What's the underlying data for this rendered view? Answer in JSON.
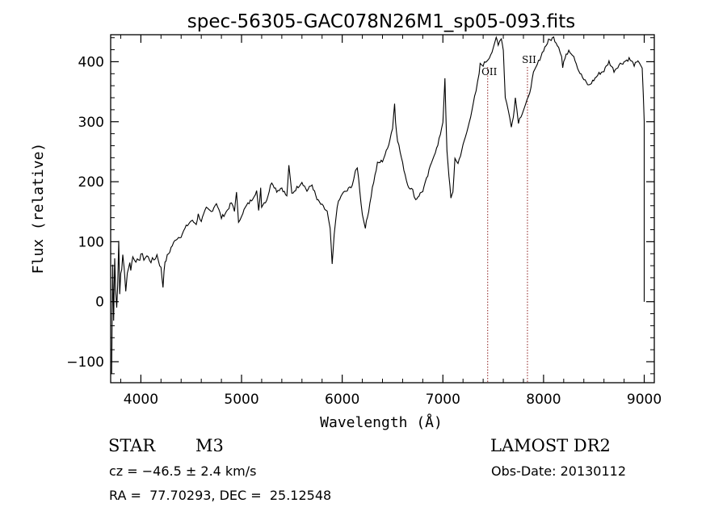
{
  "info": {
    "class_label": "STAR",
    "subclass": "M3",
    "redshift": "cz = −46.5 ± 2.4 km/s",
    "coords": "RA =  77.70293, DEC =  25.12548",
    "survey": "LAMOST DR2",
    "obs_date": "Obs-Date: 20130112"
  },
  "chart_data": {
    "type": "line",
    "title": "spec-56305-GAC078N26M1_sp05-093.fits",
    "xlabel": "Wavelength (Å)",
    "ylabel": "Flux (relative)",
    "xlim": [
      3700,
      9100
    ],
    "ylim": [
      -135,
      445
    ],
    "xticks": [
      4000,
      5000,
      6000,
      7000,
      8000,
      9000
    ],
    "yticks": [
      -100,
      0,
      100,
      200,
      300,
      400
    ],
    "ytick_labels": [
      "−100",
      "0",
      "100",
      "200",
      "300",
      "400"
    ],
    "grid": false,
    "line_color": "#000000",
    "annotation_color": "#8b1a1a",
    "annotations": [
      {
        "label": "OII",
        "x": 7445,
        "y": 378
      },
      {
        "label": "SII",
        "x": 7840,
        "y": 398
      }
    ],
    "series": [
      {
        "x": [
          3710,
          3720,
          3730,
          3740,
          3750,
          3760,
          3770,
          3780,
          3790,
          3800,
          3820,
          3850,
          3880,
          3900,
          3920,
          3950,
          3980,
          4000,
          4030,
          4060,
          4100,
          4130,
          4160,
          4200,
          4220,
          4230,
          4250,
          4300,
          4350,
          4400,
          4450,
          4500,
          4550,
          4570,
          4600,
          4650,
          4700,
          4750,
          4800,
          4850,
          4900,
          4930,
          4950,
          4970,
          5000,
          5050,
          5100,
          5150,
          5170,
          5190,
          5200,
          5250,
          5300,
          5350,
          5400,
          5450,
          5470,
          5500,
          5550,
          5600,
          5650,
          5700,
          5750,
          5800,
          5850,
          5880,
          5890,
          5900,
          5920,
          5950,
          6000,
          6050,
          6100,
          6130,
          6150,
          6200,
          6230,
          6250,
          6300,
          6350,
          6400,
          6450,
          6500,
          6520,
          6530,
          6550,
          6600,
          6650,
          6700,
          6730,
          6750,
          6800,
          6850,
          6900,
          6950,
          7000,
          7020,
          7040,
          7060,
          7080,
          7100,
          7120,
          7150,
          7200,
          7250,
          7300,
          7330,
          7360,
          7370,
          7400,
          7450,
          7500,
          7530,
          7550,
          7580,
          7600,
          7620,
          7650,
          7680,
          7700,
          7720,
          7750,
          7800,
          7850,
          7900,
          7950,
          8000,
          8050,
          8100,
          8150,
          8180,
          8190,
          8200,
          8250,
          8300,
          8350,
          8400,
          8450,
          8500,
          8550,
          8600,
          8650,
          8700,
          8750,
          8800,
          8850,
          8900,
          8950,
          8980,
          9000,
          9000
        ],
        "values": [
          -120,
          60,
          -20,
          80,
          20,
          -10,
          40,
          90,
          10,
          50,
          70,
          30,
          65,
          55,
          75,
          70,
          65,
          80,
          72,
          76,
          68,
          70,
          78,
          55,
          25,
          55,
          70,
          90,
          105,
          110,
          125,
          135,
          130,
          145,
          135,
          155,
          150,
          165,
          140,
          150,
          165,
          150,
          185,
          130,
          145,
          160,
          170,
          185,
          150,
          190,
          160,
          170,
          200,
          185,
          190,
          175,
          225,
          180,
          190,
          200,
          185,
          195,
          170,
          160,
          150,
          120,
          95,
          60,
          110,
          160,
          180,
          185,
          195,
          215,
          225,
          145,
          125,
          140,
          190,
          230,
          235,
          255,
          290,
          330,
          300,
          270,
          230,
          195,
          185,
          170,
          175,
          185,
          210,
          240,
          260,
          300,
          370,
          250,
          210,
          175,
          180,
          240,
          230,
          260,
          290,
          330,
          350,
          380,
          395,
          395,
          405,
          420,
          440,
          430,
          440,
          420,
          340,
          320,
          290,
          310,
          340,
          300,
          320,
          340,
          380,
          400,
          420,
          435,
          440,
          425,
          410,
          390,
          400,
          420,
          410,
          385,
          370,
          360,
          370,
          380,
          385,
          400,
          385,
          395,
          400,
          405,
          395,
          400,
          390,
          300,
          0
        ]
      }
    ]
  }
}
